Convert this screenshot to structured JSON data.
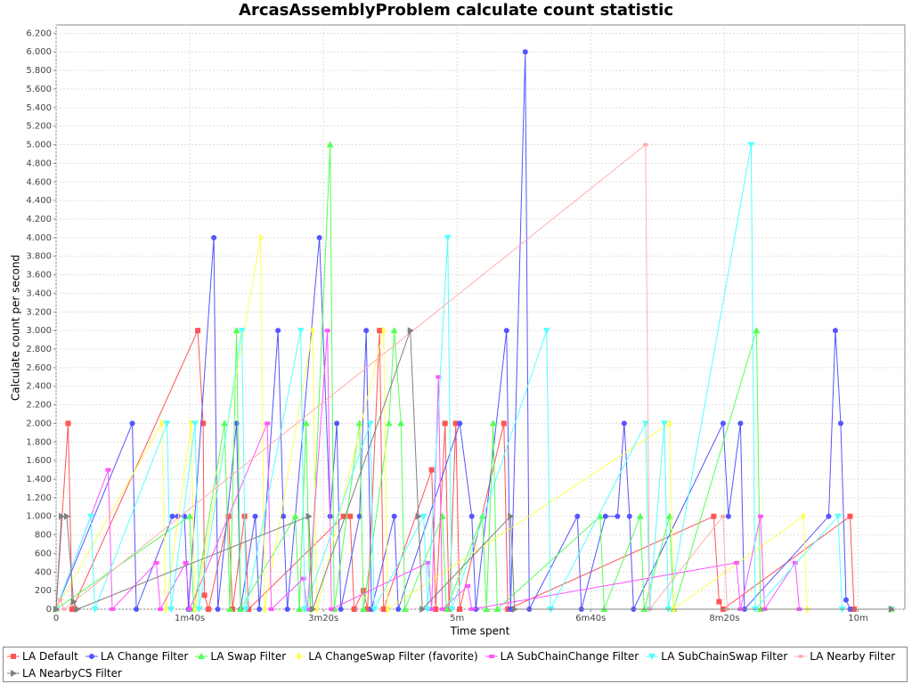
{
  "chart_data": {
    "type": "line",
    "title": "ArcasAssemblyProblem calculate count statistic",
    "x_label": "Time spent",
    "y_label": "Calculate count per second",
    "xlim": [
      0,
      635
    ],
    "ylim": [
      0,
      6290
    ],
    "xticks": [
      0,
      {
        "value": 100,
        "label": "1m40s"
      },
      {
        "value": 200,
        "label": "3m20s"
      },
      {
        "value": 300,
        "label": "5m"
      },
      {
        "value": 400,
        "label": "6m40s"
      },
      {
        "value": 500,
        "label": "8m20s"
      },
      {
        "value": 600,
        "label": "10m"
      }
    ],
    "yticks": [
      0,
      200,
      400,
      600,
      800,
      {
        "value": 1000,
        "label": "1.000"
      },
      {
        "value": 1200,
        "label": "1.200"
      },
      {
        "value": 1400,
        "label": "1.400"
      },
      {
        "value": 1600,
        "label": "1.600"
      },
      {
        "value": 1800,
        "label": "1.800"
      },
      {
        "value": 2000,
        "label": "2.000"
      },
      {
        "value": 2200,
        "label": "2.200"
      },
      {
        "value": 2400,
        "label": "2.400"
      },
      {
        "value": 2600,
        "label": "2.600"
      },
      {
        "value": 2800,
        "label": "2.800"
      },
      {
        "value": 3000,
        "label": "3.000"
      },
      {
        "value": 3200,
        "label": "3.200"
      },
      {
        "value": 3400,
        "label": "3.400"
      },
      {
        "value": 3600,
        "label": "3.600"
      },
      {
        "value": 3800,
        "label": "3.800"
      },
      {
        "value": 4000,
        "label": "4.000"
      },
      {
        "value": 4200,
        "label": "4.200"
      },
      {
        "value": 4400,
        "label": "4.400"
      },
      {
        "value": 4600,
        "label": "4.600"
      },
      {
        "value": 4800,
        "label": "4.800"
      },
      {
        "value": 5000,
        "label": "5.000"
      },
      {
        "value": 5200,
        "label": "5.200"
      },
      {
        "value": 5400,
        "label": "5.400"
      },
      {
        "value": 5600,
        "label": "5.600"
      },
      {
        "value": 5800,
        "label": "5.800"
      },
      {
        "value": 6000,
        "label": "6.000"
      },
      {
        "value": 6200,
        "label": "6.200"
      }
    ],
    "grid": true,
    "series": [
      {
        "name": "LA Default",
        "color": "#ff5555",
        "x": [
          0,
          9,
          12,
          106,
          110,
          111,
          114,
          129,
          132,
          141,
          144,
          215,
          220,
          223,
          230,
          233,
          242,
          245,
          281,
          284,
          291,
          294,
          299,
          302,
          335,
          338,
          492,
          496,
          499,
          594,
          597,
          625
        ],
        "values": [
          0,
          2000,
          0,
          3000,
          2000,
          150,
          0,
          1000,
          0,
          1000,
          0,
          1000,
          1000,
          0,
          200,
          0,
          3000,
          0,
          1500,
          0,
          2000,
          0,
          2000,
          0,
          2000,
          0,
          1000,
          80,
          0,
          1000,
          0,
          0
        ]
      },
      {
        "name": "LA Change Filter",
        "color": "#5555ff",
        "x": [
          0,
          57,
          60,
          87,
          91,
          96,
          99,
          118,
          121,
          135,
          138,
          149,
          152,
          166,
          170,
          173,
          197,
          205,
          210,
          213,
          227,
          232,
          236,
          253,
          256,
          302,
          311,
          314,
          337,
          340,
          351,
          354,
          390,
          393,
          411,
          420,
          425,
          429,
          432,
          499,
          503,
          512,
          515,
          578,
          583,
          587,
          591,
          594,
          625
        ],
        "values": [
          0,
          2000,
          0,
          1000,
          1000,
          1000,
          0,
          4000,
          0,
          2000,
          0,
          1000,
          0,
          3000,
          1000,
          0,
          4000,
          1000,
          2000,
          0,
          1000,
          3000,
          0,
          1000,
          0,
          2000,
          1000,
          0,
          3000,
          0,
          6000,
          0,
          1000,
          0,
          1000,
          1000,
          2000,
          1000,
          0,
          2000,
          1000,
          2000,
          0,
          1000,
          3000,
          2000,
          100,
          0,
          0
        ]
      },
      {
        "name": "LA Swap Filter",
        "color": "#55ff55",
        "x": [
          0,
          100,
          103,
          126,
          130,
          135,
          138,
          179,
          182,
          187,
          190,
          205,
          208,
          227,
          230,
          249,
          253,
          258,
          261,
          289,
          292,
          319,
          322,
          327,
          330,
          407,
          410,
          437,
          440,
          459,
          462,
          524,
          527,
          625
        ],
        "values": [
          0,
          1000,
          0,
          2000,
          0,
          3000,
          0,
          1000,
          0,
          2000,
          0,
          5000,
          0,
          2000,
          0,
          2000,
          3000,
          2000,
          0,
          1000,
          0,
          1000,
          0,
          2000,
          0,
          1000,
          0,
          1000,
          0,
          1000,
          0,
          3000,
          0,
          0
        ]
      },
      {
        "name": "LA ChangeSwap Filter (favorite)",
        "color": "#ffff55",
        "x": [
          0,
          79,
          82,
          101,
          104,
          153,
          156,
          192,
          195,
          245,
          248,
          459,
          462,
          559,
          562,
          625
        ],
        "values": [
          0,
          2000,
          0,
          2000,
          0,
          4000,
          0,
          3000,
          0,
          3000,
          0,
          2000,
          0,
          1000,
          0,
          0
        ]
      },
      {
        "name": "LA SubChainChange Filter",
        "color": "#ff55ff",
        "x": [
          0,
          39,
          42,
          75,
          78,
          97,
          100,
          158,
          161,
          185,
          188,
          203,
          206,
          278,
          281,
          286,
          289,
          308,
          311,
          509,
          512,
          527,
          530,
          553,
          556,
          625
        ],
        "values": [
          0,
          1500,
          0,
          500,
          0,
          500,
          0,
          2000,
          0,
          330,
          0,
          3000,
          0,
          500,
          0,
          2500,
          0,
          250,
          0,
          500,
          0,
          1000,
          0,
          500,
          0,
          0
        ]
      },
      {
        "name": "LA SubChainSwap Filter",
        "color": "#55ffff",
        "x": [
          0,
          26,
          29,
          83,
          86,
          104,
          107,
          139,
          142,
          183,
          186,
          235,
          238,
          275,
          278,
          293,
          296,
          367,
          370,
          441,
          444,
          455,
          458,
          520,
          523,
          585,
          588,
          625
        ],
        "values": [
          0,
          1000,
          0,
          2000,
          0,
          2000,
          0,
          3000,
          0,
          3000,
          0,
          2000,
          0,
          1000,
          0,
          4000,
          0,
          3000,
          0,
          2000,
          0,
          2000,
          0,
          5000,
          0,
          1000,
          0,
          0
        ]
      },
      {
        "name": "LA Nearby Filter",
        "color": "#ffafaf",
        "x": [
          0,
          3,
          6,
          441,
          444,
          499,
          502,
          625
        ],
        "values": [
          0,
          100,
          0,
          5000,
          0,
          1000,
          0,
          0
        ]
      },
      {
        "name": "LA NearbyCS Filter",
        "color": "#808080",
        "x": [
          0,
          4,
          8,
          13,
          16,
          189,
          192,
          265,
          271,
          274,
          340,
          343,
          625
        ],
        "values": [
          0,
          1000,
          1000,
          80,
          0,
          1000,
          0,
          3000,
          1000,
          0,
          1000,
          0,
          0
        ]
      }
    ]
  }
}
